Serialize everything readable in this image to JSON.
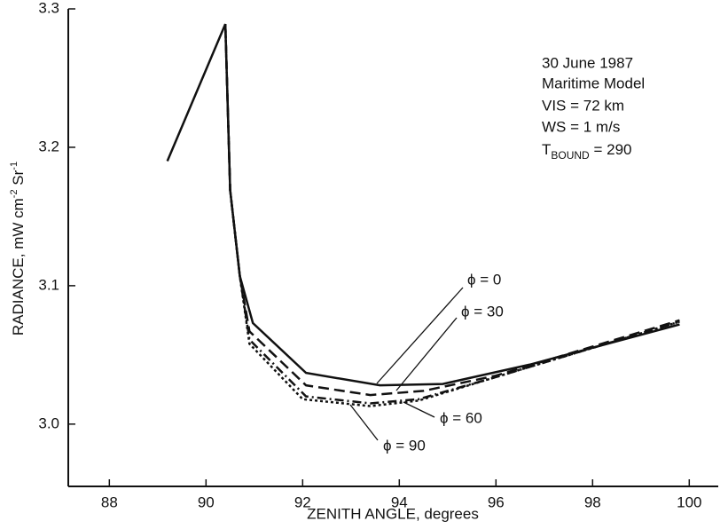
{
  "chart_data": {
    "type": "line",
    "xlabel": "ZENITH ANGLE, degrees",
    "ylabel": {
      "parts": [
        "RADIANCE, mW cm",
        "-2",
        " Sr",
        "-1"
      ]
    },
    "xlim": [
      87.15,
      100.6
    ],
    "xticks": [
      88,
      90,
      92,
      94,
      96,
      98,
      100
    ],
    "ylim": [
      2.955,
      3.3
    ],
    "yticks": [
      {
        "value": 3.0,
        "label": "3.0"
      },
      {
        "value": 3.1,
        "label": "3.1"
      },
      {
        "value": 3.2,
        "label": "3.2"
      },
      {
        "value": 3.3,
        "label": "3.3"
      }
    ],
    "info": [
      "30 June 1987",
      "Maritime Model",
      "VIS = 72 km",
      "WS = 1 m/s"
    ],
    "info_bound": {
      "main": "T",
      "sub": "BOUND",
      "rest": " = 290"
    },
    "series": [
      {
        "name": "ϕ = 0",
        "color": "#111111",
        "style": "solid",
        "x": [
          89.2,
          90.4,
          90.5,
          90.7,
          90.97,
          92.07,
          93.6,
          94.9,
          96.7,
          99.8
        ],
        "values": [
          3.19,
          3.289,
          3.169,
          3.107,
          3.073,
          3.037,
          3.028,
          3.029,
          3.043,
          3.072
        ]
      },
      {
        "name": "ϕ = 30",
        "color": "#111111",
        "style": "dashed",
        "x": [
          90.4,
          90.5,
          90.7,
          90.9,
          92.07,
          93.4,
          94.5,
          96.0,
          99.8
        ],
        "values": [
          3.289,
          3.169,
          3.107,
          3.067,
          3.028,
          3.021,
          3.024,
          3.035,
          3.075
        ]
      },
      {
        "name": "ϕ = 60",
        "color": "#111111",
        "style": "dashdot",
        "x": [
          90.4,
          90.5,
          90.7,
          90.9,
          92.07,
          93.4,
          94.4,
          96.0,
          99.8
        ],
        "values": [
          3.289,
          3.169,
          3.107,
          3.061,
          3.02,
          3.015,
          3.018,
          3.034,
          3.074
        ]
      },
      {
        "name": "ϕ = 90",
        "color": "#111111",
        "style": "dotted",
        "x": [
          90.4,
          90.5,
          90.7,
          90.9,
          92.0,
          93.4,
          94.4,
          96.0,
          99.8
        ],
        "values": [
          3.289,
          3.169,
          3.107,
          3.058,
          3.018,
          3.013,
          3.017,
          3.034,
          3.074
        ]
      }
    ]
  }
}
